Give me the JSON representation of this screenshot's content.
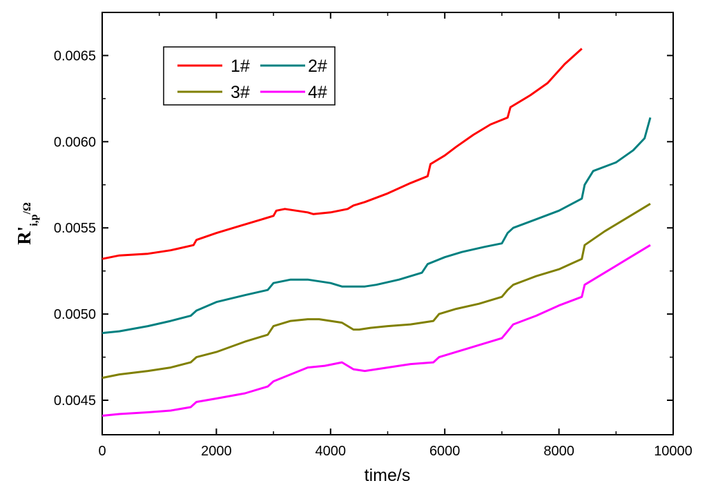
{
  "chart_data": {
    "type": "line",
    "xlabel": "time/s",
    "ylabel": {
      "main": "R",
      "prime": "'",
      "sub": "i,p",
      "unit": "/Ω"
    },
    "xlim": [
      0,
      10000
    ],
    "ylim": [
      0.0043,
      0.00675
    ],
    "xticks": [
      0,
      2000,
      4000,
      6000,
      8000,
      10000
    ],
    "yticks": [
      0.0045,
      0.005,
      0.0055,
      0.006,
      0.0065
    ],
    "ytick_labels": [
      "0.0045",
      "0.0050",
      "0.0055",
      "0.0060",
      "0.0065"
    ],
    "grid": false,
    "legend_position": "top-left",
    "series": [
      {
        "name": "1#",
        "color": "#ff0000",
        "x": [
          0,
          300,
          800,
          1200,
          1600,
          1650,
          2000,
          2400,
          2800,
          3000,
          3050,
          3200,
          3400,
          3600,
          3700,
          4000,
          4300,
          4400,
          4600,
          5000,
          5400,
          5700,
          5750,
          6000,
          6200,
          6500,
          6800,
          7100,
          7150,
          7500,
          7800,
          8100,
          8400
        ],
        "y": [
          0.00532,
          0.00534,
          0.00535,
          0.00537,
          0.0054,
          0.00543,
          0.00547,
          0.00551,
          0.00555,
          0.00557,
          0.0056,
          0.00561,
          0.0056,
          0.00559,
          0.00558,
          0.00559,
          0.00561,
          0.00563,
          0.00565,
          0.0057,
          0.00576,
          0.0058,
          0.00587,
          0.00592,
          0.00597,
          0.00604,
          0.0061,
          0.00614,
          0.0062,
          0.00627,
          0.00634,
          0.00645,
          0.00654
        ]
      },
      {
        "name": "2#",
        "color": "#008080",
        "x": [
          0,
          300,
          800,
          1200,
          1550,
          1650,
          2000,
          2500,
          2900,
          3000,
          3300,
          3600,
          3800,
          4000,
          4200,
          4400,
          4600,
          4800,
          5200,
          5600,
          5700,
          6000,
          6300,
          6700,
          7000,
          7100,
          7200,
          7600,
          8000,
          8400,
          8450,
          8600,
          9000,
          9300,
          9500,
          9600
        ],
        "y": [
          0.00489,
          0.0049,
          0.00493,
          0.00496,
          0.00499,
          0.00502,
          0.00507,
          0.00511,
          0.00514,
          0.00518,
          0.0052,
          0.0052,
          0.00519,
          0.00518,
          0.00516,
          0.00516,
          0.00516,
          0.00517,
          0.0052,
          0.00524,
          0.00529,
          0.00533,
          0.00536,
          0.00539,
          0.00541,
          0.00547,
          0.0055,
          0.00555,
          0.0056,
          0.00567,
          0.00575,
          0.00583,
          0.00588,
          0.00595,
          0.00602,
          0.00614
        ]
      },
      {
        "name": "3#",
        "color": "#808000",
        "x": [
          0,
          300,
          800,
          1200,
          1550,
          1650,
          2000,
          2500,
          2900,
          3000,
          3300,
          3600,
          3800,
          4000,
          4200,
          4400,
          4500,
          4700,
          5000,
          5400,
          5800,
          5900,
          6200,
          6600,
          7000,
          7100,
          7200,
          7600,
          8000,
          8400,
          8450,
          8800,
          9200,
          9600
        ],
        "y": [
          0.00463,
          0.00465,
          0.00467,
          0.00469,
          0.00472,
          0.00475,
          0.00478,
          0.00484,
          0.00488,
          0.00493,
          0.00496,
          0.00497,
          0.00497,
          0.00496,
          0.00495,
          0.00491,
          0.00491,
          0.00492,
          0.00493,
          0.00494,
          0.00496,
          0.005,
          0.00503,
          0.00506,
          0.0051,
          0.00514,
          0.00517,
          0.00522,
          0.00526,
          0.00532,
          0.0054,
          0.00548,
          0.00556,
          0.00564
        ]
      },
      {
        "name": "4#",
        "color": "#ff00ff",
        "x": [
          0,
          300,
          800,
          1200,
          1550,
          1650,
          2000,
          2500,
          2900,
          3000,
          3300,
          3600,
          3900,
          4200,
          4300,
          4400,
          4600,
          5000,
          5400,
          5800,
          5900,
          6200,
          6600,
          7000,
          7100,
          7200,
          7600,
          8000,
          8400,
          8450,
          8800,
          9200,
          9600
        ],
        "y": [
          0.00441,
          0.00442,
          0.00443,
          0.00444,
          0.00446,
          0.00449,
          0.00451,
          0.00454,
          0.00458,
          0.00461,
          0.00465,
          0.00469,
          0.0047,
          0.00472,
          0.0047,
          0.00468,
          0.00467,
          0.00469,
          0.00471,
          0.00472,
          0.00475,
          0.00478,
          0.00482,
          0.00486,
          0.0049,
          0.00494,
          0.00499,
          0.00505,
          0.0051,
          0.00517,
          0.00524,
          0.00532,
          0.0054
        ]
      }
    ]
  }
}
